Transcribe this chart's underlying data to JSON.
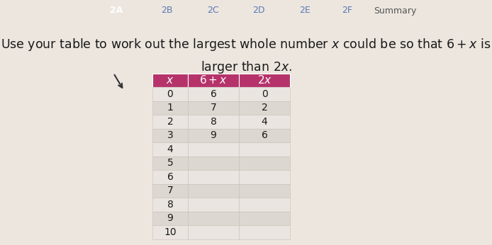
{
  "bg_color": "#ece6df",
  "tab_labels": [
    "2A",
    "2B",
    "2C",
    "2D",
    "2E",
    "2F",
    "Summary"
  ],
  "tab_active_color": "#2b4a8c",
  "tab_inactive_color": "#d4cfc9",
  "tab_text_color_active": "#ffffff",
  "tab_text_color_inactive": "#5a7ab0",
  "tab_summary_color": "#e8e4e0",
  "tab_summary_text": "#555555",
  "question_line1": "Use your table to work out the largest whole number $x$ could be so that $6 + x$ is",
  "question_line2": "larger than $2x$.",
  "question_fontsize": 12.5,
  "question_color": "#1a1a1a",
  "table_header_color": "#b5336a",
  "table_header_text": "#ffffff",
  "table_row_light": "#eae5e0",
  "table_row_dark": "#ddd7d1",
  "col_header": [
    "$x$",
    "$6+x$",
    "$2x$"
  ],
  "x_values": [
    "0",
    "1",
    "2",
    "3",
    "4",
    "5",
    "6",
    "7",
    "8",
    "9",
    "10"
  ],
  "col2_values": [
    "6",
    "7",
    "8",
    "9",
    "",
    "",
    "",
    "",
    "",
    "",
    ""
  ],
  "col3_values": [
    "0",
    "2",
    "4",
    "6",
    "",
    "",
    "",
    "",
    "",
    "",
    ""
  ],
  "body_text_color": "#1a1a1a",
  "body_fontsize": 10,
  "header_fontsize": 11
}
